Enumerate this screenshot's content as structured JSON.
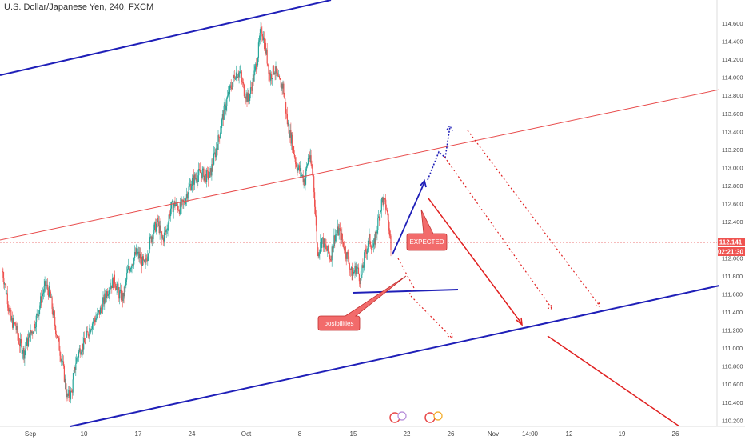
{
  "header": {
    "title": "U.S. Dollar/Japanese Yen, 240, FXCM"
  },
  "colors": {
    "up": "#26a69a",
    "down": "#ef5350",
    "channel_blue": "#1f1fb8",
    "channel_red": "#e84b4b",
    "callout": "#f26b6b"
  },
  "chart_data": {
    "type": "candlestick",
    "title": "U.S. Dollar/Japanese Yen, 240, FXCM",
    "ylim": [
      110.15,
      114.75
    ],
    "y_ticks": [
      "114.600",
      "114.400",
      "114.200",
      "114.000",
      "113.800",
      "113.600",
      "113.400",
      "113.200",
      "113.000",
      "112.800",
      "112.600",
      "112.400",
      "112.200",
      "112.000",
      "111.800",
      "111.600",
      "111.400",
      "111.200",
      "111.000",
      "110.800",
      "110.600",
      "110.400",
      "110.200"
    ],
    "x_ticks": [
      "Sep",
      "10",
      "17",
      "24",
      "Oct",
      "8",
      "15",
      "22",
      "26",
      "Nov",
      "14:00",
      "12",
      "19",
      "26"
    ],
    "current_price": "112.141",
    "countdown": "02:21:30",
    "close_series": [
      111.85,
      111.6,
      111.3,
      111.25,
      111.05,
      110.95,
      111.1,
      111.2,
      111.35,
      111.55,
      111.7,
      111.6,
      111.3,
      111.05,
      110.8,
      110.45,
      110.5,
      110.85,
      111.0,
      111.05,
      111.2,
      111.3,
      111.35,
      111.45,
      111.6,
      111.7,
      111.75,
      111.6,
      111.55,
      111.85,
      111.95,
      112.05,
      112.0,
      111.9,
      112.15,
      112.3,
      112.4,
      112.2,
      112.3,
      112.55,
      112.6,
      112.55,
      112.6,
      112.75,
      112.85,
      112.9,
      112.95,
      112.9,
      112.9,
      113.1,
      113.3,
      113.55,
      113.75,
      113.9,
      114.05,
      114.05,
      113.85,
      113.75,
      113.95,
      114.2,
      114.55,
      114.3,
      114.0,
      114.1,
      113.95,
      113.9,
      113.5,
      113.3,
      113.05,
      112.95,
      112.85,
      113.15,
      112.9,
      112.05,
      112.2,
      112.1,
      112.0,
      112.25,
      112.3,
      112.15,
      112.0,
      111.8,
      111.9,
      111.75,
      112.05,
      112.2,
      112.1,
      112.4,
      112.65,
      112.55,
      112.15
    ],
    "annotations": [
      "EXPECTED",
      "posibilities"
    ]
  }
}
